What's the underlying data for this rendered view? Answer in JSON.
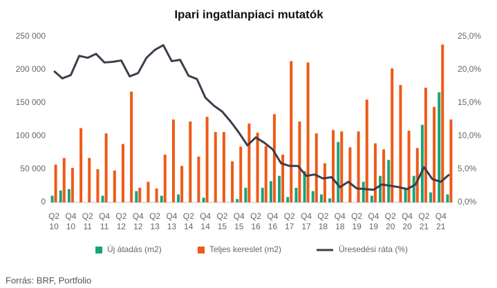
{
  "chart_data": {
    "type": "bar_line",
    "title": "Ipari ingatlanpiaci mutatók",
    "source": "Forrás: BRF, Portfolio",
    "categories": [
      "Q2 10",
      null,
      "Q4 10",
      null,
      "Q2 11",
      null,
      "Q4 11",
      null,
      "Q2 12",
      null,
      "Q4 12",
      null,
      "Q2 13",
      null,
      "Q4 13",
      null,
      "Q2 14",
      null,
      "Q4 14",
      null,
      "Q2 15",
      null,
      "Q4 15",
      null,
      "Q2 16",
      null,
      "Q4 16",
      null,
      "Q2 17",
      null,
      "Q4 17",
      null,
      "Q2 18",
      null,
      "Q4 18",
      null,
      "Q2 19",
      null,
      "Q4 19",
      null,
      "Q2 20",
      null,
      "Q4 20",
      null,
      "Q2 21",
      null,
      "Q4 21",
      null
    ],
    "series": [
      {
        "name": "Új átadás (m2)",
        "color": "#1aa37a",
        "values": [
          10000,
          18000,
          20000,
          0,
          0,
          0,
          10000,
          0,
          0,
          0,
          17000,
          0,
          0,
          10000,
          0,
          12000,
          0,
          0,
          7000,
          0,
          0,
          0,
          5000,
          22000,
          0,
          22000,
          32000,
          40000,
          8000,
          22000,
          47000,
          17000,
          12000,
          6000,
          91000,
          0,
          0,
          31000,
          10000,
          40000,
          64000,
          0,
          22000,
          40000,
          117000,
          15000,
          166000,
          12000
        ]
      },
      {
        "name": "Teljes kereslet (m2)",
        "color": "#ee5a17",
        "values": [
          57000,
          67000,
          52000,
          112000,
          67000,
          50000,
          104000,
          48000,
          88000,
          167000,
          22000,
          31000,
          21000,
          72000,
          125000,
          55000,
          122000,
          69000,
          129000,
          106000,
          106000,
          62000,
          84000,
          119000,
          105000,
          85000,
          133000,
          72000,
          213000,
          122000,
          211000,
          104000,
          59000,
          109000,
          107000,
          83000,
          107000,
          155000,
          89000,
          80000,
          202000,
          177000,
          108000,
          82000,
          173000,
          144000,
          238000,
          125000
        ]
      },
      {
        "name": "Üresedési ráta (%)",
        "color": "#3a3f4a",
        "axis": "y2",
        "values": [
          19.8,
          18.7,
          19.2,
          22.1,
          21.8,
          22.4,
          21.1,
          21.2,
          21.4,
          19.0,
          19.5,
          21.8,
          23.0,
          23.7,
          21.3,
          21.5,
          19.1,
          18.6,
          15.8,
          14.6,
          13.7,
          12.2,
          10.5,
          8.6,
          9.8,
          9.0,
          8.0,
          5.9,
          5.5,
          5.5,
          4.0,
          4.2,
          3.6,
          3.8,
          2.3,
          3.1,
          2.1,
          2.0,
          1.9,
          2.7,
          2.5,
          2.3,
          2.0,
          2.7,
          5.3,
          3.5,
          3.1,
          4.2
        ]
      }
    ],
    "ylim": [
      0,
      250000
    ],
    "yticks": [
      0,
      {
        "value": 50000,
        "label": "50 000"
      },
      {
        "value": 100000,
        "label": "100 000"
      },
      {
        "value": 150000,
        "label": "150 000"
      },
      {
        "value": 200000,
        "label": "200 000"
      },
      {
        "value": 250000,
        "label": "250 000"
      }
    ],
    "y2lim": [
      0,
      25
    ],
    "y2ticks": [
      {
        "value": 0,
        "label": "0,0%"
      },
      {
        "value": 5,
        "label": "5,0%"
      },
      {
        "value": 10,
        "label": "10,0%"
      },
      {
        "value": 15,
        "label": "15,0%"
      },
      {
        "value": 20,
        "label": "20,0%"
      },
      {
        "value": 25,
        "label": "25,0%"
      }
    ],
    "grid": false
  }
}
